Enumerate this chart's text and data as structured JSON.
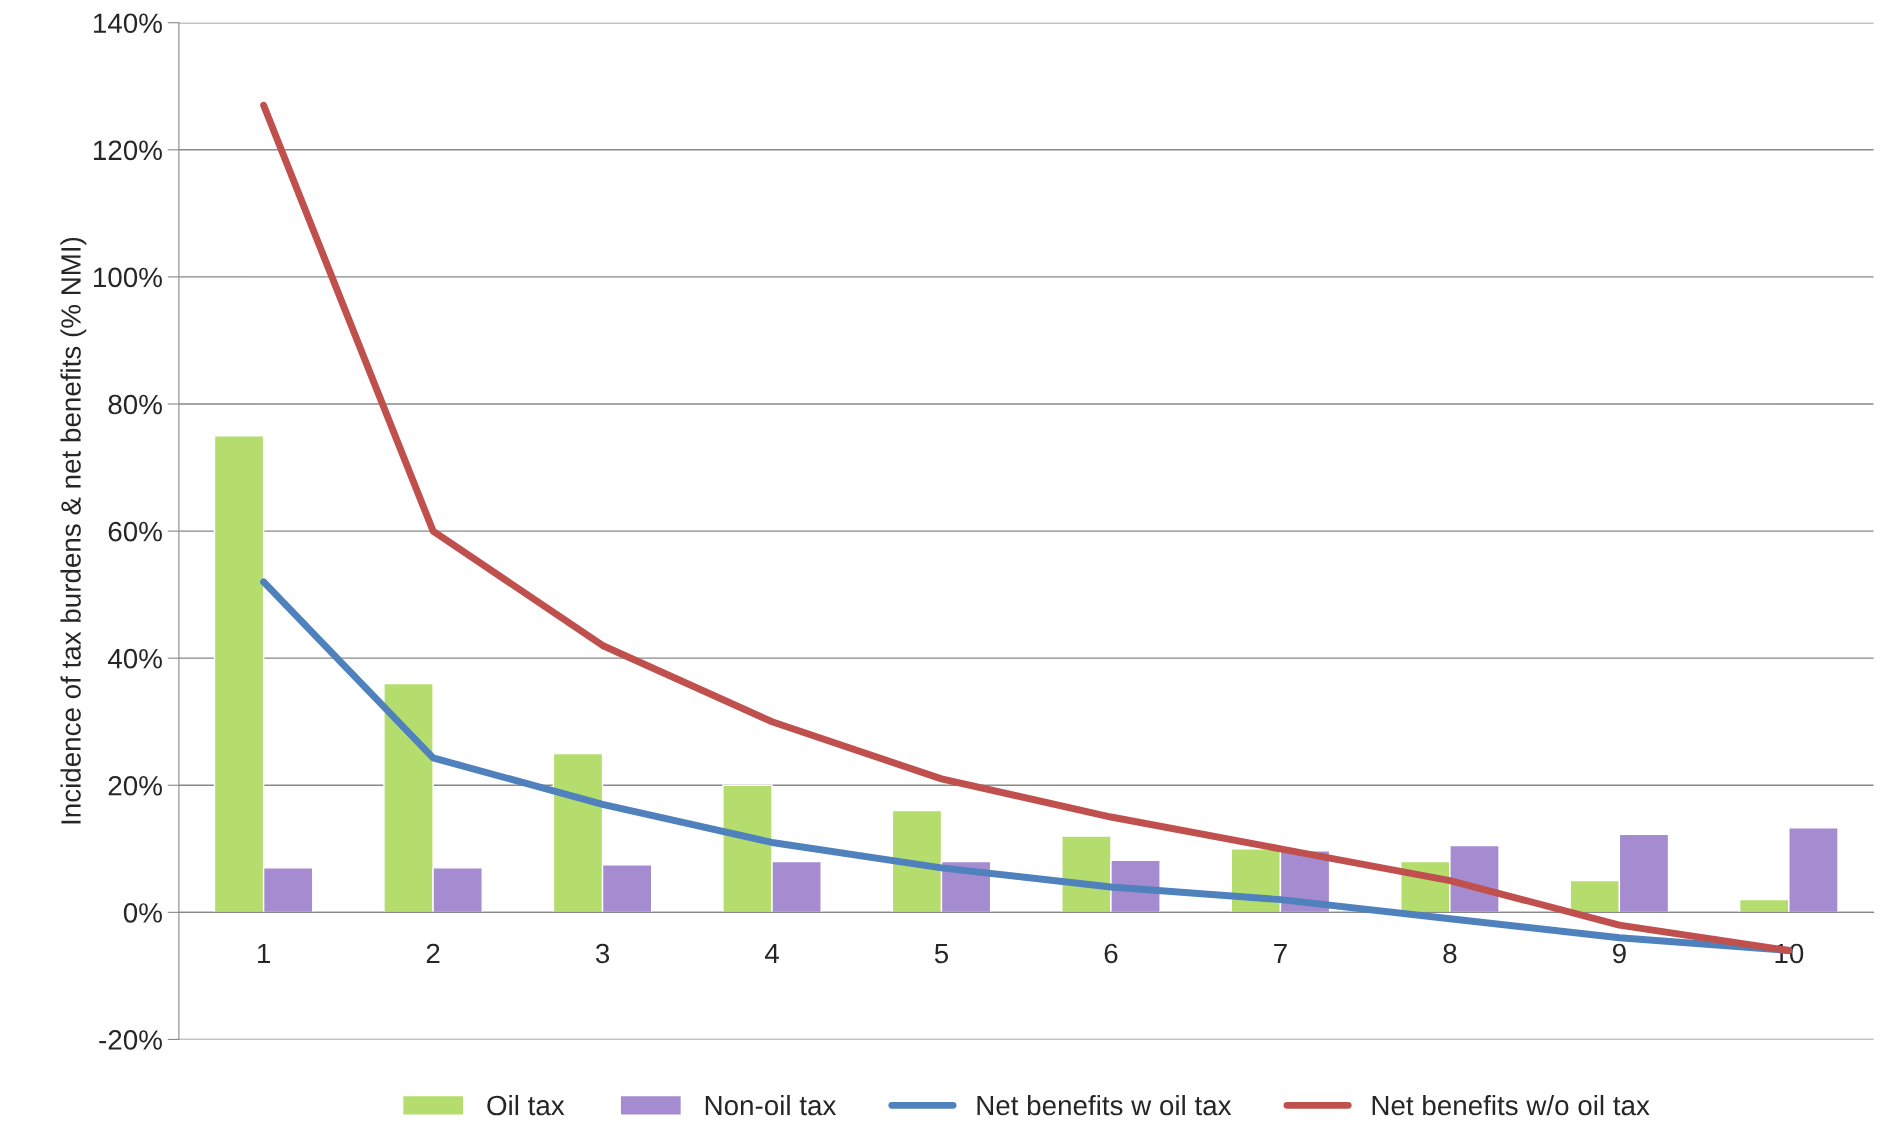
{
  "chart_data": {
    "type": "bar",
    "ylabel": "Incidence of tax burdens & net benefits (% NMI)",
    "categories": [
      "1",
      "2",
      "3",
      "4",
      "5",
      "6",
      "7",
      "8",
      "9",
      "10"
    ],
    "series": [
      {
        "name": "Oil tax",
        "color": "#b5dd6e",
        "values": [
          75,
          36,
          25,
          20,
          16,
          12,
          10,
          8,
          5,
          2
        ]
      },
      {
        "name": "Non-oil tax",
        "color": "#a58bd0",
        "values": [
          7,
          7,
          7.5,
          8,
          8,
          8.2,
          9.7,
          10.5,
          12.3,
          13.3
        ]
      },
      {
        "name": "Net benefits w oil tax",
        "type": "line",
        "color": "#4f81bd",
        "values": [
          52,
          24.3,
          17,
          11,
          7,
          4,
          2,
          -1,
          -4,
          -6
        ]
      },
      {
        "name": "Net benefits w/o oil tax",
        "type": "line",
        "color": "#c0504d",
        "values": [
          127,
          60,
          42,
          30,
          21,
          15,
          10,
          5,
          -2,
          -6
        ]
      }
    ],
    "ylim": [
      -20,
      140
    ],
    "yticks": [
      {
        "value": -20,
        "label": "-20%"
      },
      {
        "value": 0,
        "label": "0%"
      },
      {
        "value": 20,
        "label": "20%"
      },
      {
        "value": 40,
        "label": "40%"
      },
      {
        "value": 60,
        "label": "60%"
      },
      {
        "value": 80,
        "label": "80%"
      },
      {
        "value": 100,
        "label": "100%"
      },
      {
        "value": 120,
        "label": "120%"
      },
      {
        "value": 140,
        "label": "140%"
      }
    ],
    "grid": "y",
    "legend": "bottom",
    "line_style": "solid"
  }
}
